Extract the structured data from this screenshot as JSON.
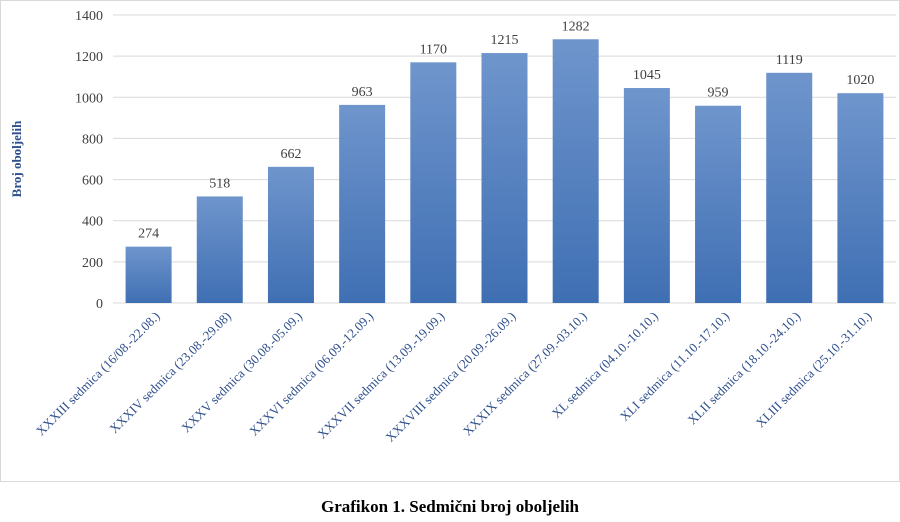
{
  "caption": "Grafikon 1. Sedmični broj oboljelih",
  "chart_data": {
    "type": "bar",
    "title": "",
    "xlabel": "",
    "ylabel": "Broj oboljelih",
    "ylim": [
      0,
      1400
    ],
    "yticks": [
      0,
      200,
      400,
      600,
      800,
      1000,
      1200,
      1400
    ],
    "grid": true,
    "legend": "none",
    "bar_color_top": "#6f95cc",
    "bar_color_bottom": "#3f6fb3",
    "categories": [
      "XXXIII sedmica (16/08.-22.08.)",
      "XXXIV sedmica (23.08.-29.08)",
      "XXXV sedmica (30.08.-05.09.)",
      "XXXVI sedmica (06.09.-12.09.)",
      "XXXVII sedmica (13.09.-19.09.)",
      "XXXVIII sedmica (20.09.-26.09.)",
      "XXXIX sedmica (27.09.-03.10.)",
      "XL sedmica (04.10.-10.10.)",
      "XLI sedmica (11.10.-17.10.)",
      "XLII sedmica (18.10.-24.10.)",
      "XLIII sedmica (25.10.-31.10.)"
    ],
    "values": [
      274,
      518,
      662,
      963,
      1170,
      1215,
      1282,
      1045,
      959,
      1119,
      1020
    ]
  }
}
